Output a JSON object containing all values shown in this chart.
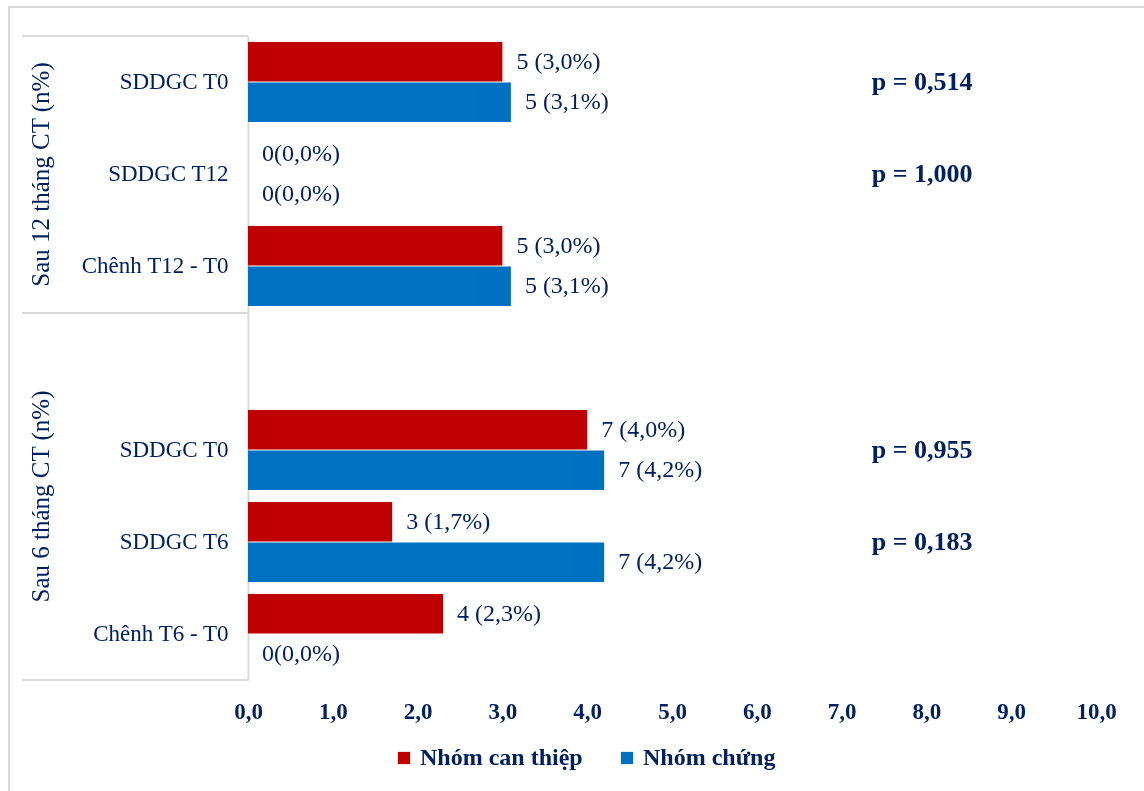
{
  "chart_data": [
    {
      "type": "bar",
      "orientation": "horizontal",
      "ylabel": "Sau 12 tháng CT (n%)",
      "categories": [
        "SDDGC T0",
        "SDDGC T12",
        "Chênh T12 - T0"
      ],
      "series": [
        {
          "name": "Nhóm can thiệp",
          "color": "#c00000",
          "values": [
            3.0,
            0,
            3.0
          ],
          "value_labels": [
            "5 (3,0%)",
            "0(0,0%)",
            "5 (3,0%)"
          ]
        },
        {
          "name": "Nhóm chứng",
          "color": "#0070c0",
          "values": [
            3.1,
            0,
            3.1
          ],
          "value_labels": [
            "5 (3,1%)",
            "0(0,0%)",
            "5 (3,1%)"
          ]
        }
      ],
      "xlim": [
        0,
        10
      ],
      "tick_labels": "y",
      "legend": "bottom",
      "annotations": [
        "p = 0,514",
        "p = 1,000"
      ]
    },
    {
      "type": "bar",
      "orientation": "horizontal",
      "ylabel": "Sau 6 tháng CT (n%)",
      "categories": [
        "SDDGC T0",
        "SDDGC T6",
        "Chênh T6 - T0"
      ],
      "series": [
        {
          "name": "Nhóm can thiệp",
          "color": "#c00000",
          "values": [
            4.0,
            1.7,
            2.3
          ],
          "value_labels": [
            "7 (4,0%)",
            "3 (1,7%)",
            "4 (2,3%)"
          ]
        },
        {
          "name": "Nhóm chứng",
          "color": "#0070c0",
          "values": [
            4.2,
            4.2,
            0
          ],
          "value_labels": [
            "7 (4,2%)",
            "7 (4,2%)",
            "0(0,0%)"
          ]
        }
      ],
      "xlim": [
        0,
        10
      ],
      "xticks": [
        {
          "value": 0,
          "label": "0,0"
        },
        {
          "value": 1,
          "label": "1,0"
        },
        {
          "value": 2,
          "label": "2,0"
        },
        {
          "value": 3,
          "label": "3,0"
        },
        {
          "value": 4,
          "label": "4,0"
        },
        {
          "value": 5,
          "label": "5,0"
        },
        {
          "value": 6,
          "label": "6,0"
        },
        {
          "value": 7,
          "label": "7,0"
        },
        {
          "value": 8,
          "label": "8,0"
        },
        {
          "value": 9,
          "label": "9,0"
        },
        {
          "value": 10,
          "label": "10,0"
        }
      ],
      "legend": "bottom",
      "annotations": [
        "p = 0,955",
        "p = 0,183"
      ]
    }
  ]
}
